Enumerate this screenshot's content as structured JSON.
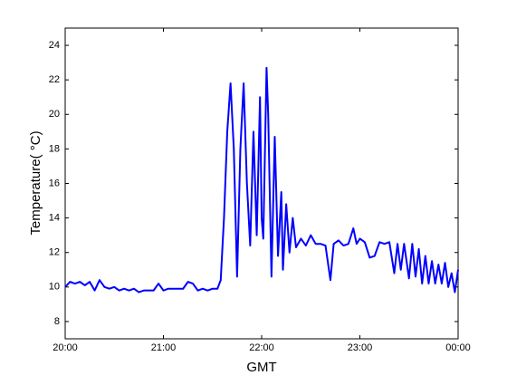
{
  "chart_data": {
    "type": "line",
    "xlabel": "GMT",
    "ylabel": "Temperature( °C)",
    "x": [
      "20:00",
      "20:03",
      "20:06",
      "20:09",
      "20:12",
      "20:15",
      "20:18",
      "20:21",
      "20:24",
      "20:27",
      "20:30",
      "20:33",
      "20:36",
      "20:39",
      "20:42",
      "20:45",
      "20:48",
      "20:51",
      "20:54",
      "20:57",
      "21:00",
      "21:03",
      "21:06",
      "21:09",
      "21:12",
      "21:15",
      "21:18",
      "21:21",
      "21:24",
      "21:27",
      "21:30",
      "21:33",
      "21:35",
      "21:37",
      "21:39",
      "21:41",
      "21:43",
      "21:45",
      "21:47",
      "21:49",
      "21:51",
      "21:53",
      "21:55",
      "21:57",
      "21:59",
      "22:00",
      "22:01",
      "22:03",
      "22:04",
      "22:06",
      "22:08",
      "22:10",
      "22:12",
      "22:13",
      "22:15",
      "22:17",
      "22:19",
      "22:21",
      "22:24",
      "22:27",
      "22:30",
      "22:33",
      "22:36",
      "22:39",
      "22:42",
      "22:44",
      "22:47",
      "22:50",
      "22:53",
      "22:56",
      "22:58",
      "23:00",
      "23:03",
      "23:06",
      "23:09",
      "23:12",
      "23:15",
      "23:18",
      "23:21",
      "23:23",
      "23:25",
      "23:27",
      "23:30",
      "23:32",
      "23:34",
      "23:36",
      "23:38",
      "23:40",
      "23:42",
      "23:44",
      "23:46",
      "23:48",
      "23:50",
      "23:52",
      "23:54",
      "23:56",
      "23:58",
      "00:00"
    ],
    "series": [
      {
        "name": "Temperature",
        "color": "#0000ff",
        "values": [
          10.0,
          10.3,
          10.2,
          10.3,
          10.1,
          10.3,
          9.8,
          10.4,
          10.0,
          9.9,
          10.0,
          9.8,
          9.9,
          9.8,
          9.9,
          9.7,
          9.8,
          9.8,
          9.8,
          10.2,
          9.8,
          9.9,
          9.9,
          9.9,
          9.9,
          10.3,
          10.2,
          9.8,
          9.9,
          9.8,
          9.9,
          9.9,
          10.4,
          14,
          19,
          21.8,
          18,
          10.6,
          18,
          21.8,
          16,
          12.4,
          19,
          13,
          21.0,
          14,
          12.8,
          22.7,
          20,
          10.6,
          18.7,
          11.8,
          15.5,
          11,
          14.8,
          12,
          14,
          12.3,
          12.8,
          12.4,
          13.0,
          12.5,
          12.5,
          12.4,
          10.4,
          12.5,
          12.7,
          12.4,
          12.5,
          13.4,
          12.5,
          12.8,
          12.6,
          11.7,
          11.8,
          12.6,
          12.5,
          12.6,
          10.8,
          12.5,
          11,
          12.5,
          10.5,
          12.5,
          10.6,
          12.2,
          10.2,
          11.8,
          10.2,
          11.5,
          10.2,
          11.3,
          10.2,
          11.4,
          10.0,
          10.8,
          9.7,
          11.0
        ]
      }
    ],
    "xlim": [
      "20:00",
      "00:00"
    ],
    "xticks": [
      "20:00",
      "21:00",
      "22:00",
      "23:00",
      "00:00"
    ],
    "ylim": [
      7,
      25
    ],
    "yticks": [
      8,
      10,
      12,
      14,
      16,
      18,
      20,
      22,
      24
    ]
  }
}
